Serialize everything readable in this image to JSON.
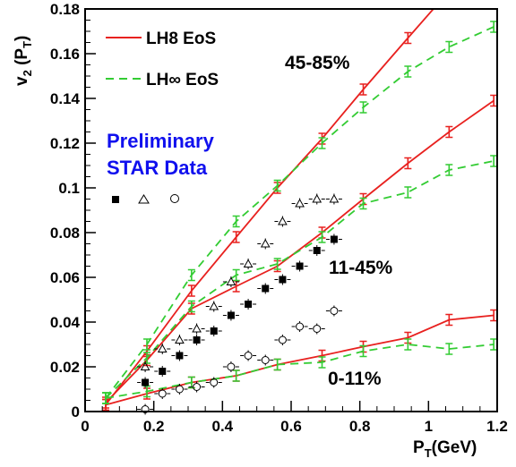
{
  "chart_data": {
    "type": "line",
    "title": "",
    "xlabel": "P_T(GeV)",
    "ylabel": "v_2(P_T)",
    "xlim": [
      0,
      1.2
    ],
    "ylim": [
      0,
      0.18
    ],
    "x_ticks": [
      "0",
      "0.2",
      "0.4",
      "0.6",
      "0.8",
      "1",
      "1.2"
    ],
    "y_ticks": [
      "0",
      "0.02",
      "0.04",
      "0.06",
      "0.08",
      "0.1",
      "0.12",
      "0.14",
      "0.16",
      "0.18"
    ],
    "grid": false,
    "legend_position": "top-left",
    "annotations": {
      "centrality_45_85": "45-85%",
      "centrality_11_45": "11-45%",
      "centrality_0_11": "0-11%",
      "star_line1": "Preliminary",
      "star_line2": "STAR Data"
    },
    "colors": {
      "lh8": "#e8211f",
      "lhinf": "#33cc33",
      "star": "#1010ee",
      "data": "#000000"
    },
    "series": [
      {
        "name": "LH8 EoS",
        "style": "solid",
        "color": "#e8211f",
        "x": [
          0.06,
          0.18,
          0.31,
          0.44,
          0.56,
          0.69,
          0.81,
          0.94,
          1.06,
          1.19
        ],
        "y": [
          0.003,
          0.027,
          0.054,
          0.078,
          0.1,
          0.122,
          0.144,
          0.167,
          0.188,
          0.202
        ]
      },
      {
        "name": "LH8 EoS",
        "style": "solid",
        "color": "#e8211f",
        "x": [
          0.06,
          0.18,
          0.31,
          0.44,
          0.56,
          0.69,
          0.81,
          0.94,
          1.06,
          1.19
        ],
        "y": [
          0.004,
          0.023,
          0.046,
          0.056,
          0.065,
          0.08,
          0.095,
          0.111,
          0.125,
          0.139
        ]
      },
      {
        "name": "LH8 EoS",
        "style": "solid",
        "color": "#e8211f",
        "x": [
          0.06,
          0.18,
          0.31,
          0.44,
          0.56,
          0.69,
          0.81,
          0.94,
          1.06,
          1.19
        ],
        "y": [
          0.003,
          0.008,
          0.013,
          0.016,
          0.021,
          0.025,
          0.029,
          0.033,
          0.041,
          0.043
        ]
      },
      {
        "name": "LH∞ EoS",
        "style": "dashed",
        "color": "#33cc33",
        "x": [
          0.06,
          0.18,
          0.31,
          0.44,
          0.56,
          0.69,
          0.81,
          0.94,
          1.06,
          1.19
        ],
        "y": [
          0.006,
          0.03,
          0.061,
          0.085,
          0.101,
          0.12,
          0.136,
          0.152,
          0.163,
          0.172
        ]
      },
      {
        "name": "LH∞ EoS",
        "style": "dashed",
        "color": "#33cc33",
        "x": [
          0.06,
          0.18,
          0.31,
          0.44,
          0.56,
          0.69,
          0.81,
          0.94,
          1.06,
          1.19
        ],
        "y": [
          0.006,
          0.024,
          0.047,
          0.061,
          0.066,
          0.078,
          0.093,
          0.098,
          0.108,
          0.112
        ]
      },
      {
        "name": "LH∞ EoS",
        "style": "dashed",
        "color": "#33cc33",
        "x": [
          0.06,
          0.18,
          0.31,
          0.44,
          0.56,
          0.69,
          0.81,
          0.94,
          1.06,
          1.19
        ],
        "y": [
          0.006,
          0.009,
          0.013,
          0.016,
          0.021,
          0.022,
          0.027,
          0.03,
          0.028,
          0.03
        ]
      },
      {
        "name": "",
        "style": "markers",
        "marker": "square-filled",
        "color": "#000000",
        "x": [
          0.175,
          0.225,
          0.275,
          0.325,
          0.375,
          0.425,
          0.475,
          0.525,
          0.575,
          0.625,
          0.675,
          0.725
        ],
        "y": [
          0.013,
          0.018,
          0.025,
          0.032,
          0.036,
          0.043,
          0.048,
          0.055,
          0.059,
          0.065,
          0.072,
          0.077
        ]
      },
      {
        "name": "",
        "style": "markers",
        "marker": "triangle-open",
        "color": "#000000",
        "x": [
          0.175,
          0.225,
          0.275,
          0.325,
          0.375,
          0.425,
          0.475,
          0.525,
          0.575,
          0.625,
          0.675,
          0.725
        ],
        "y": [
          0.02,
          0.028,
          0.032,
          0.037,
          0.047,
          0.058,
          0.066,
          0.075,
          0.085,
          0.093,
          0.095,
          0.095
        ]
      },
      {
        "name": "",
        "style": "markers",
        "marker": "circle-open",
        "color": "#000000",
        "x": [
          0.175,
          0.225,
          0.275,
          0.325,
          0.375,
          0.425,
          0.475,
          0.525,
          0.575,
          0.625,
          0.675,
          0.725
        ],
        "y": [
          0.001,
          0.008,
          0.01,
          0.011,
          0.013,
          0.02,
          0.025,
          0.023,
          0.032,
          0.038,
          0.037,
          0.045
        ]
      }
    ]
  }
}
